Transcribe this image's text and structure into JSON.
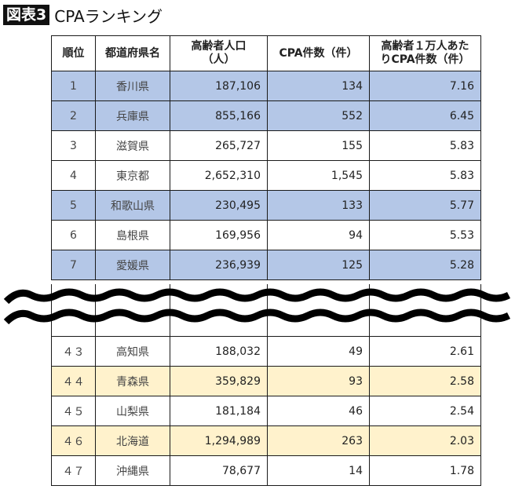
{
  "title": {
    "tag": "図表3",
    "text": "CPAランキング"
  },
  "headers": [
    "順位",
    "都道府県名",
    "高齢者人口（人）",
    "CPA件数（件）",
    "高齢者１万人あたりCPA件数（件）"
  ],
  "header_lines": {
    "h2a": "高齢者人口",
    "h2b": "（人）",
    "h3": "CPA件数（件）",
    "h4a": "高齢者１万人あた",
    "h4b": "りCPA件数（件）"
  },
  "colors": {
    "highlight_blue": "#b4c7e7",
    "highlight_yellow": "#fff2cc",
    "border": "#1a1a1a"
  },
  "top_rows": [
    {
      "rank": "1",
      "pref": "香川県",
      "pop": "187,106",
      "cpa": "134",
      "per10k": "7.16",
      "hl": "blue"
    },
    {
      "rank": "2",
      "pref": "兵庫県",
      "pop": "855,166",
      "cpa": "552",
      "per10k": "6.45",
      "hl": "blue"
    },
    {
      "rank": "3",
      "pref": "滋賀県",
      "pop": "265,727",
      "cpa": "155",
      "per10k": "5.83",
      "hl": ""
    },
    {
      "rank": "4",
      "pref": "東京都",
      "pop": "2,652,310",
      "cpa": "1,545",
      "per10k": "5.83",
      "hl": ""
    },
    {
      "rank": "5",
      "pref": "和歌山県",
      "pop": "230,495",
      "cpa": "133",
      "per10k": "5.77",
      "hl": "blue"
    },
    {
      "rank": "6",
      "pref": "島根県",
      "pop": "169,956",
      "cpa": "94",
      "per10k": "5.53",
      "hl": ""
    },
    {
      "rank": "7",
      "pref": "愛媛県",
      "pop": "236,939",
      "cpa": "125",
      "per10k": "5.28",
      "hl": "blue"
    }
  ],
  "bottom_rows": [
    {
      "rank": "４３",
      "pref": "高知県",
      "pop": "188,032",
      "cpa": "49",
      "per10k": "2.61",
      "hl": ""
    },
    {
      "rank": "４４",
      "pref": "青森県",
      "pop": "359,829",
      "cpa": "93",
      "per10k": "2.58",
      "hl": "yellow"
    },
    {
      "rank": "４５",
      "pref": "山梨県",
      "pop": "181,184",
      "cpa": "46",
      "per10k": "2.54",
      "hl": ""
    },
    {
      "rank": "４６",
      "pref": "北海道",
      "pop": "1,294,989",
      "cpa": "263",
      "per10k": "2.03",
      "hl": "yellow"
    },
    {
      "rank": "４７",
      "pref": "沖縄県",
      "pop": "78,677",
      "cpa": "14",
      "per10k": "1.78",
      "hl": ""
    }
  ]
}
